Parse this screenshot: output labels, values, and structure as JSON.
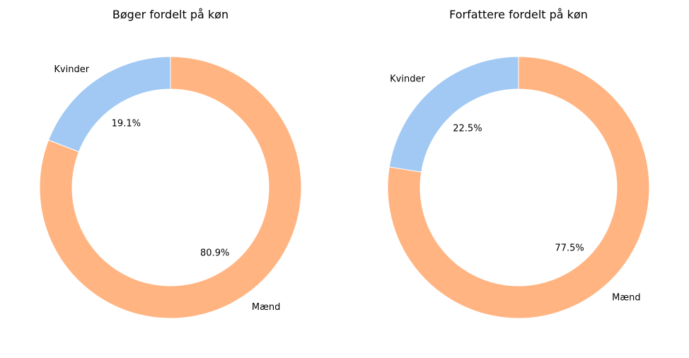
{
  "chart_data": [
    {
      "type": "pie",
      "style": "donut",
      "title": "Bøger fordelt på køn",
      "categories": [
        "Kvinder",
        "Mænd"
      ],
      "values": [
        19.1,
        80.9
      ],
      "value_labels": [
        "19.1%",
        "80.9%"
      ],
      "colors": [
        "#a1c9f4",
        "#ffb482"
      ]
    },
    {
      "type": "pie",
      "style": "donut",
      "title": "Forfattere fordelt på køn",
      "categories": [
        "Kvinder",
        "Mænd"
      ],
      "values": [
        22.5,
        77.5
      ],
      "value_labels": [
        "22.5%",
        "77.5%"
      ],
      "colors": [
        "#a1c9f4",
        "#ffb482"
      ]
    }
  ]
}
